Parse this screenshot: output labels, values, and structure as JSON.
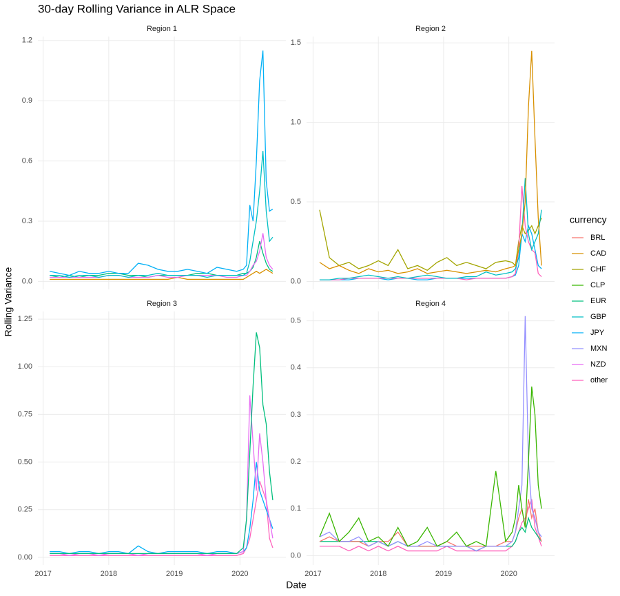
{
  "title": "30-day Rolling Variance in ALR Space",
  "x_label": "Date",
  "y_label": "Rolling Variance",
  "legend": {
    "title": "currency",
    "entries": [
      {
        "name": "BRL",
        "color": "#F8766D"
      },
      {
        "name": "CAD",
        "color": "#D89000"
      },
      {
        "name": "CHF",
        "color": "#A3A500"
      },
      {
        "name": "CLP",
        "color": "#39B600"
      },
      {
        "name": "EUR",
        "color": "#00BF7D"
      },
      {
        "name": "GBP",
        "color": "#00BFC4"
      },
      {
        "name": "JPY",
        "color": "#00B0F6"
      },
      {
        "name": "MXN",
        "color": "#9590FF"
      },
      {
        "name": "NZD",
        "color": "#E76BF3"
      },
      {
        "name": "other",
        "color": "#FF62BC"
      }
    ]
  },
  "chart_data": [
    {
      "type": "line",
      "subtitle": "Region 1",
      "x": [
        2017.1,
        2017.25,
        2017.4,
        2017.55,
        2017.7,
        2017.85,
        2018.0,
        2018.15,
        2018.3,
        2018.45,
        2018.6,
        2018.75,
        2018.9,
        2019.05,
        2019.2,
        2019.35,
        2019.5,
        2019.65,
        2019.8,
        2019.95,
        2020.05,
        2020.1,
        2020.15,
        2020.2,
        2020.25,
        2020.3,
        2020.35,
        2020.4,
        2020.45,
        2020.5
      ],
      "xlim": [
        2016.92,
        2020.7
      ],
      "xticks": [
        2017,
        2018,
        2019,
        2020
      ],
      "ylim": [
        -0.04,
        1.22
      ],
      "yticks": [
        {
          "value": 0,
          "label": "0.0"
        },
        0.3,
        0.6,
        0.9,
        1.2
      ],
      "grid": true,
      "series": [
        {
          "name": "CAD",
          "color": "#D89000",
          "values": [
            0.01,
            0.01,
            0.01,
            0.01,
            0.01,
            0.01,
            0.01,
            0.01,
            0.01,
            0.01,
            0.01,
            0.01,
            0.01,
            0.02,
            0.01,
            0.01,
            0.01,
            0.01,
            0.01,
            0.01,
            0.01,
            0.02,
            0.03,
            0.04,
            0.05,
            0.04,
            0.05,
            0.06,
            0.05,
            0.04
          ]
        },
        {
          "name": "EUR",
          "color": "#00BF7D",
          "values": [
            0.03,
            0.02,
            0.03,
            0.02,
            0.03,
            0.03,
            0.04,
            0.04,
            0.03,
            0.03,
            0.02,
            0.03,
            0.03,
            0.03,
            0.03,
            0.04,
            0.04,
            0.03,
            0.03,
            0.03,
            0.04,
            0.04,
            0.05,
            0.07,
            0.12,
            0.2,
            0.14,
            0.09,
            0.06,
            0.05
          ]
        },
        {
          "name": "NZD",
          "color": "#E76BF3",
          "values": [
            0.02,
            0.02,
            0.02,
            0.02,
            0.02,
            0.02,
            0.03,
            0.03,
            0.02,
            0.02,
            0.02,
            0.03,
            0.02,
            0.02,
            0.03,
            0.03,
            0.03,
            0.03,
            0.02,
            0.02,
            0.03,
            0.03,
            0.05,
            0.08,
            0.1,
            0.15,
            0.24,
            0.12,
            0.08,
            0.06
          ]
        },
        {
          "name": "JPY",
          "color": "#00B0F6",
          "values": [
            0.05,
            0.04,
            0.03,
            0.05,
            0.04,
            0.04,
            0.05,
            0.04,
            0.04,
            0.09,
            0.08,
            0.06,
            0.05,
            0.05,
            0.06,
            0.05,
            0.04,
            0.07,
            0.06,
            0.05,
            0.06,
            0.08,
            0.38,
            0.3,
            0.6,
            1.0,
            1.15,
            0.5,
            0.35,
            0.36
          ]
        },
        {
          "name": "GBP",
          "color": "#00BFC4",
          "values": [
            0.03,
            0.03,
            0.02,
            0.03,
            0.03,
            0.02,
            0.03,
            0.03,
            0.02,
            0.03,
            0.03,
            0.04,
            0.03,
            0.03,
            0.03,
            0.03,
            0.02,
            0.03,
            0.03,
            0.03,
            0.03,
            0.04,
            0.1,
            0.2,
            0.3,
            0.45,
            0.65,
            0.35,
            0.2,
            0.22
          ]
        }
      ]
    },
    {
      "type": "line",
      "subtitle": "Region 2",
      "x": [
        2017.1,
        2017.25,
        2017.4,
        2017.55,
        2017.7,
        2017.85,
        2018.0,
        2018.15,
        2018.3,
        2018.45,
        2018.6,
        2018.75,
        2018.9,
        2019.05,
        2019.2,
        2019.35,
        2019.5,
        2019.65,
        2019.8,
        2019.95,
        2020.05,
        2020.1,
        2020.15,
        2020.2,
        2020.25,
        2020.3,
        2020.35,
        2020.4,
        2020.45,
        2020.5
      ],
      "xlim": [
        2016.9,
        2020.7
      ],
      "xticks": [
        2017,
        2018,
        2019,
        2020
      ],
      "ylim": [
        -0.05,
        1.54
      ],
      "yticks": [
        {
          "value": 0,
          "label": "0.0"
        },
        0.5,
        {
          "value": 1,
          "label": "1.0"
        },
        1.5
      ],
      "grid": true,
      "series": [
        {
          "name": "CHF",
          "color": "#A3A500",
          "values": [
            0.45,
            0.15,
            0.1,
            0.12,
            0.08,
            0.1,
            0.13,
            0.1,
            0.2,
            0.08,
            0.1,
            0.07,
            0.12,
            0.15,
            0.1,
            0.12,
            0.1,
            0.08,
            0.12,
            0.13,
            0.12,
            0.1,
            0.25,
            0.35,
            0.3,
            0.32,
            0.35,
            0.3,
            0.35,
            0.4
          ]
        },
        {
          "name": "JPY",
          "color": "#00B0F6",
          "values": [
            0.01,
            0.01,
            0.01,
            0.01,
            0.02,
            0.02,
            0.02,
            0.01,
            0.02,
            0.02,
            0.01,
            0.01,
            0.02,
            0.02,
            0.02,
            0.02,
            0.02,
            0.02,
            0.02,
            0.02,
            0.03,
            0.04,
            0.1,
            0.3,
            0.25,
            0.35,
            0.3,
            0.2,
            0.1,
            0.08
          ]
        },
        {
          "name": "other",
          "color": "#FF62BC",
          "values": [
            0.01,
            0.01,
            0.01,
            0.02,
            0.02,
            0.02,
            0.02,
            0.02,
            0.02,
            0.02,
            0.02,
            0.02,
            0.02,
            0.02,
            0.02,
            0.01,
            0.02,
            0.02,
            0.02,
            0.02,
            0.03,
            0.05,
            0.2,
            0.6,
            0.35,
            0.25,
            0.2,
            0.18,
            0.05,
            0.03
          ]
        },
        {
          "name": "GBP",
          "color": "#00BFC4",
          "values": [
            0.01,
            0.01,
            0.02,
            0.02,
            0.03,
            0.04,
            0.03,
            0.02,
            0.03,
            0.02,
            0.03,
            0.04,
            0.03,
            0.02,
            0.02,
            0.03,
            0.03,
            0.06,
            0.04,
            0.05,
            0.06,
            0.08,
            0.15,
            0.3,
            0.65,
            0.3,
            0.2,
            0.25,
            0.3,
            0.45
          ]
        },
        {
          "name": "CAD",
          "color": "#D89000",
          "values": [
            0.12,
            0.08,
            0.1,
            0.07,
            0.05,
            0.08,
            0.06,
            0.07,
            0.05,
            0.06,
            0.08,
            0.05,
            0.06,
            0.07,
            0.06,
            0.05,
            0.06,
            0.07,
            0.06,
            0.08,
            0.09,
            0.1,
            0.2,
            0.3,
            0.5,
            1.1,
            1.45,
            0.9,
            0.4,
            0.1
          ]
        }
      ]
    },
    {
      "type": "line",
      "subtitle": "Region 3",
      "x": [
        2017.1,
        2017.25,
        2017.4,
        2017.55,
        2017.7,
        2017.85,
        2018.0,
        2018.15,
        2018.3,
        2018.45,
        2018.6,
        2018.75,
        2018.9,
        2019.05,
        2019.2,
        2019.35,
        2019.5,
        2019.65,
        2019.8,
        2019.95,
        2020.05,
        2020.1,
        2020.15,
        2020.2,
        2020.25,
        2020.3,
        2020.35,
        2020.4,
        2020.45,
        2020.5
      ],
      "xlim": [
        2016.92,
        2020.7
      ],
      "xticks": [
        2017,
        2018,
        2019,
        2020
      ],
      "ylim": [
        -0.04,
        1.29
      ],
      "yticks": [
        {
          "value": 0,
          "label": "0.00"
        },
        0.25,
        {
          "value": 0.5,
          "label": "0.50"
        },
        0.75,
        {
          "value": 1,
          "label": "1.00"
        },
        1.25
      ],
      "grid": true,
      "series": [
        {
          "name": "other",
          "color": "#FF62BC",
          "values": [
            0.01,
            0.01,
            0.01,
            0.01,
            0.01,
            0.01,
            0.01,
            0.01,
            0.01,
            0.01,
            0.01,
            0.01,
            0.01,
            0.01,
            0.01,
            0.01,
            0.01,
            0.01,
            0.01,
            0.01,
            0.02,
            0.05,
            0.1,
            0.2,
            0.3,
            0.4,
            0.35,
            0.3,
            0.1,
            0.05
          ]
        },
        {
          "name": "JPY",
          "color": "#00B0F6",
          "values": [
            0.03,
            0.03,
            0.02,
            0.03,
            0.03,
            0.02,
            0.03,
            0.03,
            0.02,
            0.06,
            0.03,
            0.02,
            0.03,
            0.03,
            0.03,
            0.03,
            0.02,
            0.03,
            0.03,
            0.02,
            0.03,
            0.05,
            0.15,
            0.3,
            0.5,
            0.35,
            0.3,
            0.25,
            0.2,
            0.15
          ]
        },
        {
          "name": "NZD",
          "color": "#E76BF3",
          "values": [
            0.02,
            0.02,
            0.01,
            0.02,
            0.02,
            0.01,
            0.02,
            0.02,
            0.02,
            0.01,
            0.02,
            0.02,
            0.02,
            0.02,
            0.02,
            0.02,
            0.01,
            0.02,
            0.02,
            0.02,
            0.03,
            0.2,
            0.85,
            0.6,
            0.35,
            0.65,
            0.5,
            0.3,
            0.2,
            0.1
          ]
        },
        {
          "name": "EUR",
          "color": "#00BF7D",
          "values": [
            0.02,
            0.02,
            0.02,
            0.02,
            0.02,
            0.02,
            0.02,
            0.02,
            0.02,
            0.02,
            0.02,
            0.02,
            0.02,
            0.02,
            0.02,
            0.02,
            0.02,
            0.02,
            0.02,
            0.02,
            0.05,
            0.2,
            0.55,
            0.9,
            1.18,
            1.1,
            0.8,
            0.7,
            0.45,
            0.3
          ]
        }
      ]
    },
    {
      "type": "line",
      "subtitle": "Region 4",
      "x": [
        2017.1,
        2017.25,
        2017.4,
        2017.55,
        2017.7,
        2017.85,
        2018.0,
        2018.15,
        2018.3,
        2018.45,
        2018.6,
        2018.75,
        2018.9,
        2019.05,
        2019.2,
        2019.35,
        2019.5,
        2019.65,
        2019.8,
        2019.95,
        2020.05,
        2020.1,
        2020.15,
        2020.2,
        2020.25,
        2020.3,
        2020.35,
        2020.4,
        2020.45,
        2020.5
      ],
      "xlim": [
        2016.9,
        2020.7
      ],
      "xticks": [
        2017,
        2018,
        2019,
        2020
      ],
      "ylim": [
        -0.02,
        0.52
      ],
      "yticks": [
        {
          "value": 0,
          "label": "0.0"
        },
        0.1,
        0.2,
        0.3,
        0.4,
        0.5
      ],
      "grid": true,
      "series": [
        {
          "name": "other",
          "color": "#FF62BC",
          "values": [
            0.02,
            0.02,
            0.02,
            0.01,
            0.02,
            0.01,
            0.02,
            0.01,
            0.02,
            0.01,
            0.01,
            0.01,
            0.01,
            0.02,
            0.01,
            0.01,
            0.01,
            0.01,
            0.01,
            0.01,
            0.02,
            0.03,
            0.05,
            0.07,
            0.08,
            0.1,
            0.12,
            0.06,
            0.04,
            0.02
          ]
        },
        {
          "name": "EUR",
          "color": "#00BF7D",
          "values": [
            0.03,
            0.03,
            0.03,
            0.03,
            0.03,
            0.03,
            0.03,
            0.02,
            0.03,
            0.02,
            0.02,
            0.02,
            0.02,
            0.02,
            0.02,
            0.02,
            0.01,
            0.02,
            0.02,
            0.02,
            0.02,
            0.03,
            0.05,
            0.06,
            0.05,
            0.08,
            0.06,
            0.05,
            0.04,
            0.03
          ]
        },
        {
          "name": "BRL",
          "color": "#F8766D",
          "values": [
            0.03,
            0.04,
            0.03,
            0.03,
            0.03,
            0.02,
            0.03,
            0.03,
            0.05,
            0.02,
            0.02,
            0.02,
            0.02,
            0.03,
            0.02,
            0.02,
            0.02,
            0.02,
            0.02,
            0.03,
            0.03,
            0.05,
            0.08,
            0.1,
            0.06,
            0.12,
            0.08,
            0.1,
            0.05,
            0.03
          ]
        },
        {
          "name": "MXN",
          "color": "#9590FF",
          "values": [
            0.04,
            0.05,
            0.03,
            0.03,
            0.04,
            0.02,
            0.03,
            0.02,
            0.03,
            0.02,
            0.02,
            0.03,
            0.02,
            0.02,
            0.02,
            0.02,
            0.01,
            0.02,
            0.02,
            0.02,
            0.03,
            0.05,
            0.1,
            0.15,
            0.51,
            0.2,
            0.1,
            0.08,
            0.05,
            0.04
          ]
        },
        {
          "name": "CLP",
          "color": "#39B600",
          "values": [
            0.04,
            0.09,
            0.03,
            0.05,
            0.08,
            0.03,
            0.04,
            0.02,
            0.06,
            0.02,
            0.03,
            0.06,
            0.02,
            0.03,
            0.05,
            0.02,
            0.03,
            0.02,
            0.18,
            0.03,
            0.05,
            0.08,
            0.15,
            0.1,
            0.06,
            0.2,
            0.36,
            0.3,
            0.15,
            0.1
          ]
        }
      ]
    }
  ]
}
